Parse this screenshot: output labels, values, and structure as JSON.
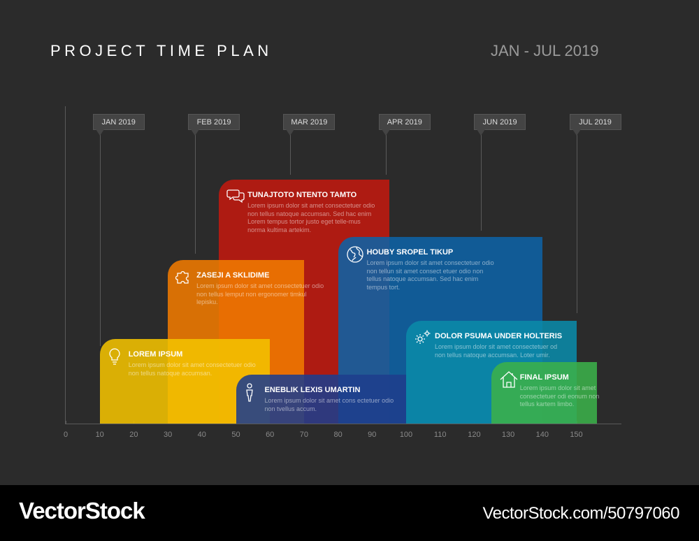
{
  "header": {
    "title": "PROJECT TIME PLAN",
    "range": "JAN - JUL 2019"
  },
  "axis": {
    "ticks": [
      "0",
      "10",
      "20",
      "30",
      "40",
      "50",
      "60",
      "70",
      "80",
      "90",
      "100",
      "110",
      "120",
      "130",
      "140",
      "150"
    ]
  },
  "milestones": [
    {
      "label": "JAN 2019",
      "x": 10
    },
    {
      "label": "FEB 2019",
      "x": 38
    },
    {
      "label": "MAR 2019",
      "x": 66
    },
    {
      "label": "APR 2019",
      "x": 94
    },
    {
      "label": "JUN 2019",
      "x": 122
    },
    {
      "label": "JUL 2019",
      "x": 150
    }
  ],
  "tasks": [
    {
      "title": "TUNAJTOTO NTENTO TAMTO",
      "text": "Lorem ipsum dolor sit amet consectetuer odio non tellus natoque accumsan. Sed hac enim Lorem tempus tortor justo eget telle-mus norma kultima artekim.",
      "icon": "chat-bubbles-icon",
      "color": "#c0190f",
      "start": 45,
      "end": 95
    },
    {
      "title": "ZASEJI A SKLIDIME",
      "text": "Lorem ipsum dolor sit amet consectetuer odio non tellus lemput non ergonomer timkul lepisku.",
      "icon": "puzzle-icon",
      "color": "#f07a00",
      "start": 30,
      "end": 70
    },
    {
      "title": "HOUBY SROPEL TIKUP",
      "text": "Lorem ipsum dolor sit amet consectetuer odio non tellun sit amet consect etuer odio non tellus natoque accumsan. Sed hac enim tempus tort.",
      "icon": "globe-icon",
      "color": "#0e62a5",
      "start": 80,
      "end": 140
    },
    {
      "title": "LOREM IPSUM",
      "text": "Lorem ipsum dolor sit amet consectetuer odio non tellus natoque accumsan.",
      "icon": "lightbulb-icon",
      "color": "#f2c200",
      "start": 10,
      "end": 60
    },
    {
      "title": "DOLOR PSUMA UNDER HOLTERIS",
      "text": "Lorem ipsum dolor sit amet consectetuer od non tellus natoque accumsan. Loter umir.",
      "icon": "gears-icon",
      "color": "#0a8aa8",
      "start": 100,
      "end": 150
    },
    {
      "title": "ENEBLIK LEXIS UMARTIN",
      "text": "Lorem ipsum dolor sit amet cons ectetuer odio non tvellus accum.",
      "icon": "person-icon",
      "color": "#1e3d8c",
      "start": 50,
      "end": 100
    },
    {
      "title": "FINAL IPSUM",
      "text": "Lorem ipsum dolor sit amet consectetuer odi eonum non tellus kartem limbo.",
      "icon": "house-icon",
      "color": "#3bb04a",
      "start": 125,
      "end": 156
    }
  ],
  "watermark": {
    "brand": "VectorStock",
    "id": "VectorStock.com/50797060"
  }
}
